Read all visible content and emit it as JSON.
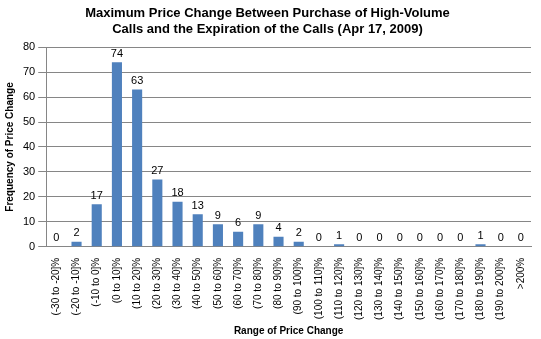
{
  "chart_data": {
    "type": "bar",
    "title": [
      "Maximum Price Change Between Purchase of High-Volume",
      "Calls and the Expiration of the Calls (Apr 17, 2009)"
    ],
    "x_label": "Range of Price Change",
    "y_label": "Frequency of Price Change",
    "categories": [
      "(-30 to -20]%",
      "(-20 to -10]%",
      "(-10 to 0]%",
      "(0 to 10]%",
      "(10 to 20]%",
      "(20 to 30]%",
      "(30 to 40]%",
      "(40 to 50]%",
      "(50 to 60]%",
      "(60 to 70]%",
      "(70 to 80]%",
      "(80 to 90]%",
      "(90 to 100]%",
      "(100 to 110]%",
      "(110 to 120]%",
      "(120 to 130]%",
      "(130 to 140]%",
      "(140 to 150]%",
      "(150 to 160]%",
      "(160 to 170]%",
      "(170 to 180]%",
      "(180 to 190]%",
      "(190 to 200]%",
      ">200%"
    ],
    "values": [
      0,
      2,
      17,
      74,
      63,
      27,
      18,
      13,
      9,
      6,
      9,
      4,
      2,
      0,
      1,
      0,
      0,
      0,
      0,
      0,
      0,
      1,
      0,
      0
    ],
    "color": "#4f81bd",
    "ylim": [
      0,
      80
    ],
    "yticks": [
      0,
      10,
      20,
      30,
      40,
      50,
      60,
      70,
      80
    ],
    "grid": true,
    "data_labels": true
  }
}
